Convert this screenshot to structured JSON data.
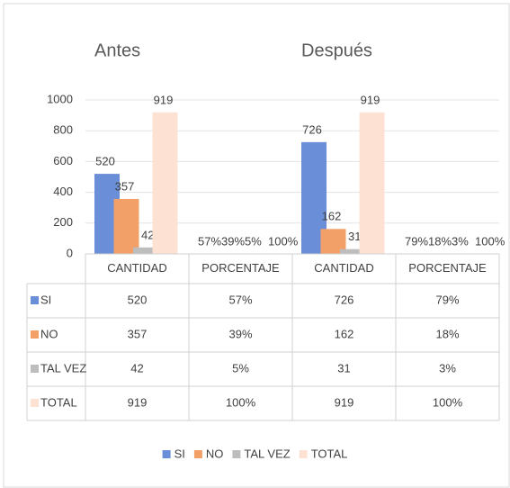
{
  "chart_data": {
    "type": "bar",
    "group_labels": [
      "Antes",
      "Después"
    ],
    "categories": [
      "CANTIDAD",
      "PORCENTAJE",
      "CANTIDAD",
      "PORCENTAJE"
    ],
    "series": [
      {
        "name": "SI",
        "color": "#6a8fd8",
        "values": [
          520,
          0.57,
          726,
          0.79
        ],
        "value_labels": [
          "520",
          "57%",
          "726",
          "79%"
        ]
      },
      {
        "name": "NO",
        "color": "#f2a068",
        "values": [
          357,
          0.39,
          162,
          0.18
        ],
        "value_labels": [
          "357",
          "39%",
          "162",
          "18%"
        ]
      },
      {
        "name": "TAL VEZ",
        "color": "#bdbdbd",
        "values": [
          42,
          0.05,
          31,
          0.03
        ],
        "value_labels": [
          "42",
          "5%",
          "31",
          "3%"
        ]
      },
      {
        "name": "TOTAL",
        "color": "#fde2d4",
        "values": [
          919,
          1,
          919,
          1
        ],
        "value_labels": [
          "919",
          "100%",
          "919",
          "100%"
        ]
      }
    ],
    "ylim": [
      0,
      1000
    ],
    "yticks": [
      0,
      200,
      400,
      600,
      800,
      1000
    ],
    "grid": true,
    "legend": "bottom"
  }
}
